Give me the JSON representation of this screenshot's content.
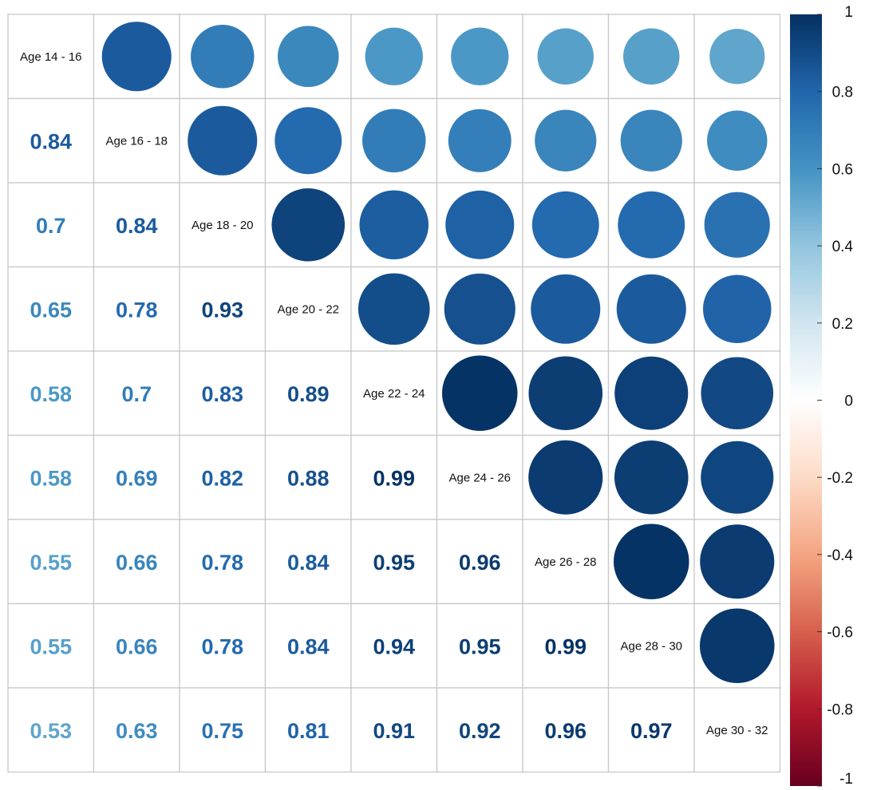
{
  "chart_data": {
    "type": "heatmap",
    "labels": [
      "Age 14 - 16",
      "Age 16 - 18",
      "Age 18 - 20",
      "Age 20 - 22",
      "Age 22 - 24",
      "Age 24 - 26",
      "Age 26 - 28",
      "Age 28 - 30",
      "Age 30 - 32"
    ],
    "matrix": [
      [
        1,
        0.84,
        0.7,
        0.65,
        0.58,
        0.58,
        0.55,
        0.55,
        0.53
      ],
      [
        0.84,
        1,
        0.84,
        0.78,
        0.7,
        0.69,
        0.66,
        0.66,
        0.63
      ],
      [
        0.7,
        0.84,
        1,
        0.93,
        0.83,
        0.82,
        0.78,
        0.78,
        0.75
      ],
      [
        0.65,
        0.78,
        0.93,
        1,
        0.89,
        0.88,
        0.84,
        0.84,
        0.81
      ],
      [
        0.58,
        0.7,
        0.83,
        0.89,
        1,
        0.99,
        0.95,
        0.94,
        0.91
      ],
      [
        0.58,
        0.69,
        0.82,
        0.88,
        0.99,
        1,
        0.96,
        0.95,
        0.92
      ],
      [
        0.55,
        0.66,
        0.78,
        0.84,
        0.95,
        0.96,
        1,
        0.99,
        0.96
      ],
      [
        0.55,
        0.66,
        0.78,
        0.84,
        0.94,
        0.95,
        0.99,
        1,
        0.97
      ],
      [
        0.53,
        0.63,
        0.75,
        0.81,
        0.91,
        0.92,
        0.96,
        0.97,
        1
      ]
    ],
    "upper_triangle": "circle",
    "lower_triangle": "number",
    "colorbar": {
      "range": [
        -1,
        1
      ],
      "ticks": [
        1,
        0.8,
        0.6,
        0.4,
        0.2,
        0,
        -0.2,
        -0.4,
        -0.6,
        -0.8,
        -1
      ],
      "tick_labels": [
        "1",
        "0.8",
        "0.6",
        "0.4",
        "0.2",
        "0",
        "-0.2",
        "-0.4",
        "-0.6",
        "-0.8",
        "-1"
      ],
      "colors": [
        "#67001F",
        "#B2182B",
        "#D6604D",
        "#F4A582",
        "#FDDBC7",
        "#FFFFFF",
        "#D1E5F0",
        "#92C5DE",
        "#4393C3",
        "#2166AC",
        "#053061"
      ]
    },
    "grid_color": "#c8c8c8"
  }
}
